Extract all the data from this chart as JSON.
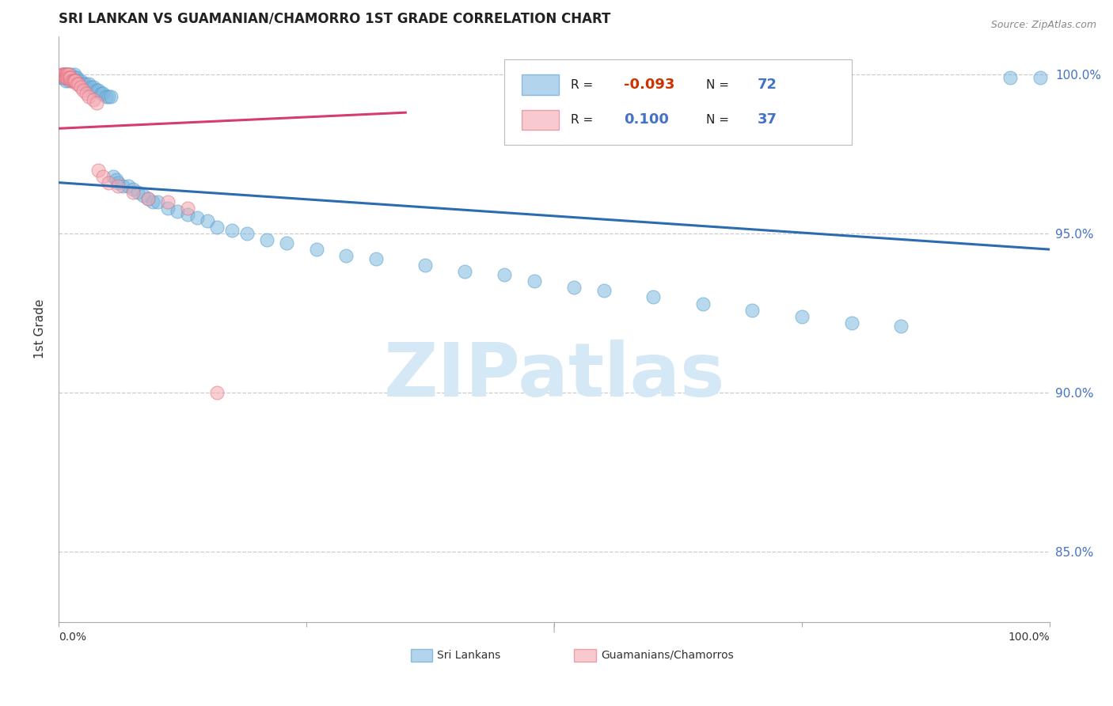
{
  "title": "SRI LANKAN VS GUAMANIAN/CHAMORRO 1ST GRADE CORRELATION CHART",
  "source": "Source: ZipAtlas.com",
  "ylabel": "1st Grade",
  "xlim": [
    0.0,
    1.0
  ],
  "ylim": [
    0.828,
    1.012
  ],
  "yticks": [
    0.85,
    0.9,
    0.95,
    1.0
  ],
  "yticklabels": [
    "85.0%",
    "90.0%",
    "95.0%",
    "100.0%"
  ],
  "blue_R": "-0.093",
  "blue_N": "72",
  "pink_R": "0.100",
  "pink_N": "37",
  "blue_color": "#7fb8e0",
  "blue_edge": "#5a9dc8",
  "pink_color": "#f4a7b0",
  "pink_edge": "#e07080",
  "blue_line_color": "#2b6cb0",
  "pink_line_color": "#d63c6e",
  "watermark_color": "#d5e8f5",
  "right_label_color": "#4472c4",
  "grid_color": "#cccccc",
  "blue_line_x": [
    0.0,
    1.0
  ],
  "blue_line_y": [
    0.966,
    0.945
  ],
  "pink_line_x": [
    0.0,
    0.35
  ],
  "pink_line_y": [
    0.983,
    0.988
  ],
  "blue_x": [
    0.003,
    0.004,
    0.005,
    0.006,
    0.006,
    0.007,
    0.007,
    0.008,
    0.008,
    0.009,
    0.01,
    0.01,
    0.011,
    0.012,
    0.013,
    0.014,
    0.015,
    0.016,
    0.017,
    0.018,
    0.02,
    0.022,
    0.025,
    0.027,
    0.03,
    0.033,
    0.035,
    0.038,
    0.04,
    0.043,
    0.045,
    0.048,
    0.05,
    0.053,
    0.055,
    0.058,
    0.06,
    0.065,
    0.07,
    0.075,
    0.08,
    0.085,
    0.09,
    0.095,
    0.1,
    0.11,
    0.12,
    0.13,
    0.14,
    0.15,
    0.16,
    0.175,
    0.19,
    0.21,
    0.23,
    0.26,
    0.29,
    0.32,
    0.37,
    0.41,
    0.45,
    0.48,
    0.52,
    0.55,
    0.6,
    0.65,
    0.7,
    0.75,
    0.8,
    0.85,
    0.96,
    0.99
  ],
  "blue_y": [
    0.999,
    0.999,
    1.0,
    1.0,
    0.999,
    0.999,
    0.998,
    1.0,
    0.999,
    0.999,
    1.0,
    0.998,
    0.999,
    1.0,
    0.999,
    0.998,
    0.999,
    1.0,
    0.999,
    0.999,
    0.998,
    0.998,
    0.997,
    0.997,
    0.997,
    0.996,
    0.996,
    0.995,
    0.995,
    0.994,
    0.994,
    0.993,
    0.993,
    0.993,
    0.968,
    0.967,
    0.966,
    0.965,
    0.965,
    0.964,
    0.963,
    0.962,
    0.961,
    0.96,
    0.96,
    0.958,
    0.957,
    0.956,
    0.955,
    0.954,
    0.952,
    0.951,
    0.95,
    0.948,
    0.947,
    0.945,
    0.943,
    0.942,
    0.94,
    0.938,
    0.937,
    0.935,
    0.933,
    0.932,
    0.93,
    0.928,
    0.926,
    0.924,
    0.922,
    0.921,
    0.999,
    0.999
  ],
  "pink_x": [
    0.003,
    0.004,
    0.005,
    0.006,
    0.006,
    0.007,
    0.007,
    0.008,
    0.008,
    0.009,
    0.009,
    0.01,
    0.01,
    0.011,
    0.012,
    0.013,
    0.014,
    0.015,
    0.016,
    0.017,
    0.018,
    0.02,
    0.022,
    0.025,
    0.028,
    0.03,
    0.035,
    0.038,
    0.04,
    0.045,
    0.05,
    0.06,
    0.075,
    0.09,
    0.11,
    0.13,
    0.16
  ],
  "pink_y": [
    1.0,
    1.0,
    1.0,
    1.0,
    0.999,
    1.0,
    0.999,
    1.0,
    0.999,
    1.0,
    0.999,
    1.0,
    0.999,
    0.999,
    0.999,
    0.998,
    0.998,
    0.998,
    0.998,
    0.998,
    0.997,
    0.997,
    0.996,
    0.995,
    0.994,
    0.993,
    0.992,
    0.991,
    0.97,
    0.968,
    0.966,
    0.965,
    0.963,
    0.961,
    0.96,
    0.958,
    0.9
  ]
}
